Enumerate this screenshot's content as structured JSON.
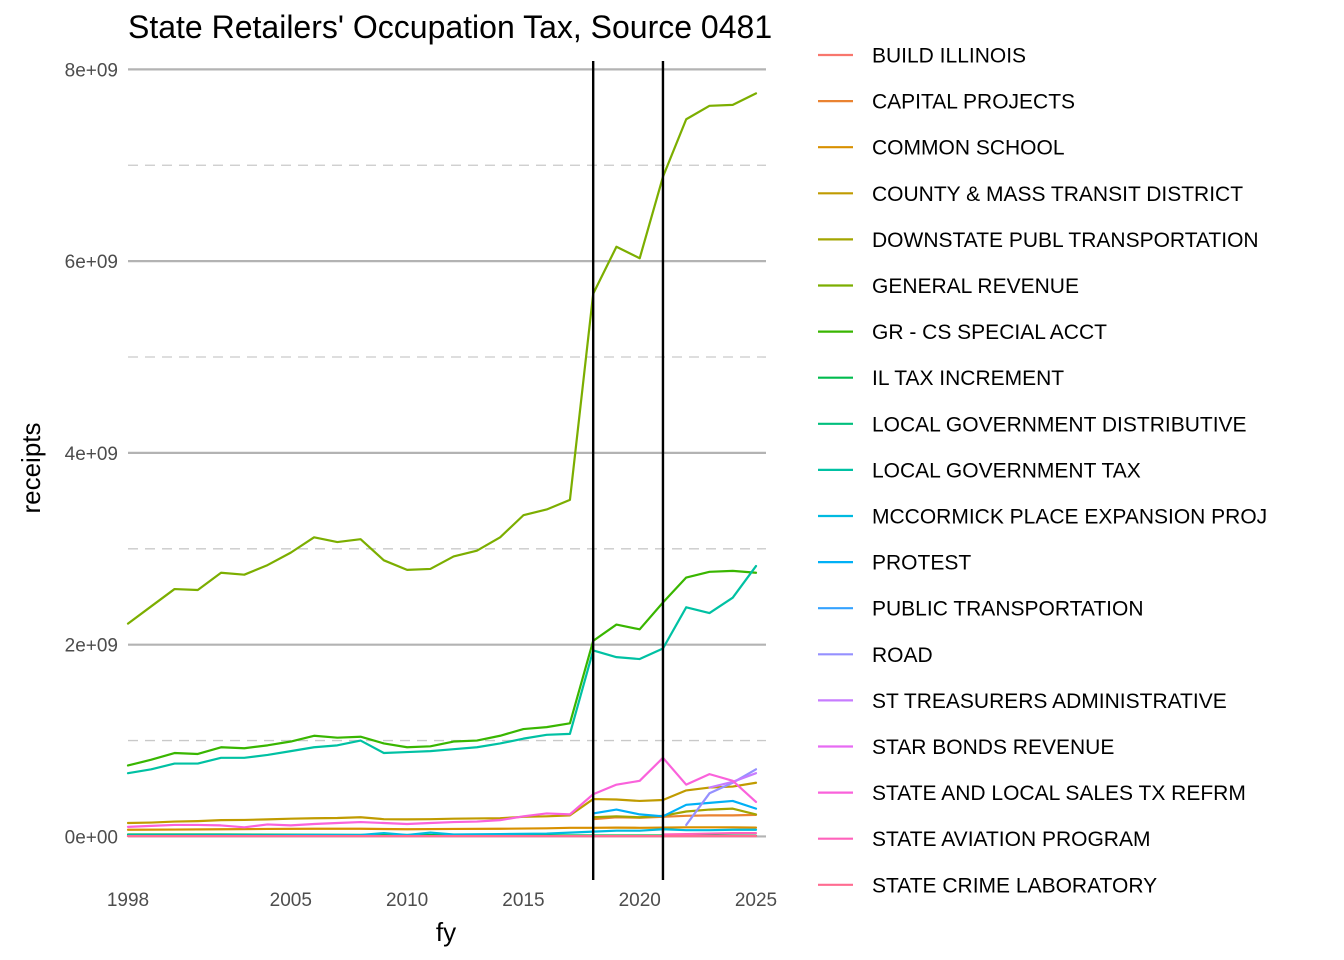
{
  "chart_data": {
    "type": "line",
    "title": "State Retailers' Occupation Tax, Source 0481",
    "xlabel": "fy",
    "ylabel": "receipts",
    "xlim": [
      1998,
      2025
    ],
    "ylim": [
      -350000000,
      8150000000
    ],
    "x_ticks": [
      1998,
      2005,
      2010,
      2015,
      2020,
      2025
    ],
    "x_tick_labels": [
      "1998",
      "2005",
      "2010",
      "2015",
      "2020",
      "2025"
    ],
    "y_ticks": [
      0,
      2000000000,
      4000000000,
      6000000000,
      8000000000
    ],
    "y_tick_labels": [
      "0e+00",
      "2e+09",
      "4e+09",
      "6e+09",
      "8e+09"
    ],
    "y_minor_ticks": [
      1000000000,
      3000000000,
      5000000000,
      7000000000
    ],
    "vlines": [
      2018,
      2021
    ],
    "grid": true,
    "legend_position": "right",
    "series": [
      {
        "name": "BUILD ILLINOIS",
        "color": "#F8766D",
        "x": [],
        "y": []
      },
      {
        "name": "CAPITAL PROJECTS",
        "color": "#EA8331",
        "x": [
          2018,
          2019,
          2020,
          2021,
          2022,
          2023,
          2024,
          2025
        ],
        "y": [
          180000000,
          200000000,
          195000000,
          205000000,
          215000000,
          220000000,
          220000000,
          225000000
        ]
      },
      {
        "name": "COMMON SCHOOL",
        "color": "#D89000",
        "x": [
          1998,
          2000,
          2002,
          2004,
          2006,
          2008,
          2010,
          2012,
          2014,
          2016,
          2017,
          2018,
          2019,
          2020,
          2021,
          2022,
          2023,
          2024,
          2025
        ],
        "y": [
          70000000,
          72000000,
          75000000,
          78000000,
          80000000,
          80000000,
          75000000,
          78000000,
          80000000,
          85000000,
          90000000,
          90000000,
          92000000,
          90000000,
          92000000,
          95000000,
          95000000,
          95000000,
          92000000
        ]
      },
      {
        "name": "COUNTY & MASS TRANSIT DISTRICT",
        "color": "#C09B00",
        "x": [
          1998,
          1999,
          2000,
          2001,
          2002,
          2003,
          2004,
          2005,
          2006,
          2007,
          2008,
          2009,
          2010,
          2011,
          2012,
          2013,
          2014,
          2015,
          2016,
          2017,
          2018,
          2019,
          2020,
          2021,
          2022,
          2023,
          2024,
          2025
        ],
        "y": [
          140000000,
          145000000,
          155000000,
          160000000,
          170000000,
          172000000,
          178000000,
          185000000,
          190000000,
          192000000,
          200000000,
          180000000,
          178000000,
          180000000,
          185000000,
          188000000,
          190000000,
          205000000,
          210000000,
          220000000,
          390000000,
          385000000,
          370000000,
          380000000,
          480000000,
          510000000,
          520000000,
          560000000
        ]
      },
      {
        "name": "DOWNSTATE PUBL TRANSPORTATION",
        "color": "#A3A500",
        "x": [
          2018,
          2019,
          2020,
          2021,
          2022,
          2023,
          2024,
          2025
        ],
        "y": [
          200000000,
          210000000,
          200000000,
          215000000,
          260000000,
          280000000,
          290000000,
          230000000
        ]
      },
      {
        "name": "GENERAL REVENUE",
        "color": "#7CAE00",
        "x": [
          1998,
          1999,
          2000,
          2001,
          2002,
          2003,
          2004,
          2005,
          2006,
          2007,
          2008,
          2009,
          2010,
          2011,
          2012,
          2013,
          2014,
          2015,
          2016,
          2017,
          2018,
          2019,
          2020,
          2021,
          2022,
          2023,
          2024,
          2025
        ],
        "y": [
          2220000000,
          2400000000,
          2580000000,
          2570000000,
          2750000000,
          2730000000,
          2830000000,
          2960000000,
          3120000000,
          3070000000,
          3100000000,
          2880000000,
          2780000000,
          2790000000,
          2920000000,
          2980000000,
          3120000000,
          3350000000,
          3410000000,
          3510000000,
          5660000000,
          6150000000,
          6030000000,
          6880000000,
          7480000000,
          7620000000,
          7630000000,
          7750000000
        ]
      },
      {
        "name": "GR - CS SPECIAL ACCT",
        "color": "#39B600",
        "x": [
          1998,
          1999,
          2000,
          2001,
          2002,
          2003,
          2004,
          2005,
          2006,
          2007,
          2008,
          2009,
          2010,
          2011,
          2012,
          2013,
          2014,
          2015,
          2016,
          2017,
          2018,
          2019,
          2020,
          2021,
          2022,
          2023,
          2024,
          2025
        ],
        "y": [
          740000000,
          800000000,
          870000000,
          860000000,
          930000000,
          920000000,
          950000000,
          990000000,
          1050000000,
          1030000000,
          1040000000,
          970000000,
          930000000,
          940000000,
          990000000,
          1000000000,
          1050000000,
          1120000000,
          1140000000,
          1180000000,
          2040000000,
          2210000000,
          2160000000,
          2440000000,
          2700000000,
          2760000000,
          2770000000,
          2750000000
        ]
      },
      {
        "name": "IL TAX INCREMENT",
        "color": "#00BB4E",
        "x": [
          1998,
          2002,
          2006,
          2010,
          2014,
          2018,
          2021,
          2025
        ],
        "y": [
          20000000,
          20000000,
          18000000,
          15000000,
          12000000,
          10000000,
          10000000,
          8000000
        ]
      },
      {
        "name": "LOCAL GOVERNMENT DISTRIBUTIVE",
        "color": "#00BF7D",
        "x": [],
        "y": []
      },
      {
        "name": "LOCAL GOVERNMENT TAX",
        "color": "#00C1A3",
        "x": [
          1998,
          1999,
          2000,
          2001,
          2002,
          2003,
          2004,
          2005,
          2006,
          2007,
          2008,
          2009,
          2010,
          2011,
          2012,
          2013,
          2014,
          2015,
          2016,
          2017,
          2018,
          2019,
          2020,
          2021,
          2022,
          2023,
          2024,
          2025
        ],
        "y": [
          660000000,
          700000000,
          760000000,
          760000000,
          820000000,
          820000000,
          850000000,
          890000000,
          930000000,
          950000000,
          1000000000,
          870000000,
          880000000,
          890000000,
          910000000,
          930000000,
          970000000,
          1020000000,
          1060000000,
          1070000000,
          1940000000,
          1870000000,
          1850000000,
          1960000000,
          2390000000,
          2330000000,
          2490000000,
          2820000000
        ]
      },
      {
        "name": "MCCORMICK PLACE EXPANSION PROJ",
        "color": "#00BAE0",
        "x": [
          1998,
          2000,
          2002,
          2004,
          2006,
          2008,
          2009,
          2010,
          2011,
          2012,
          2014,
          2016,
          2017,
          2018,
          2019,
          2020,
          2021,
          2022,
          2023,
          2024,
          2025
        ],
        "y": [
          10000000,
          10000000,
          12000000,
          12000000,
          15000000,
          15000000,
          35000000,
          15000000,
          40000000,
          20000000,
          25000000,
          30000000,
          40000000,
          50000000,
          60000000,
          60000000,
          75000000,
          65000000,
          65000000,
          70000000,
          70000000
        ]
      },
      {
        "name": "PROTEST",
        "color": "#00B0F6",
        "x": [
          2018,
          2019,
          2020,
          2021,
          2022,
          2023,
          2024,
          2025
        ],
        "y": [
          240000000,
          280000000,
          230000000,
          210000000,
          330000000,
          350000000,
          370000000,
          290000000
        ]
      },
      {
        "name": "PUBLIC TRANSPORTATION",
        "color": "#35A2FF",
        "x": [],
        "y": []
      },
      {
        "name": "ROAD",
        "color": "#9590FF",
        "x": [
          2022,
          2023,
          2024,
          2025
        ],
        "y": [
          120000000,
          450000000,
          560000000,
          700000000
        ]
      },
      {
        "name": "ST TREASURERS ADMINISTRATIVE",
        "color": "#C77CFF",
        "x": [
          2023,
          2024,
          2025
        ],
        "y": [
          510000000,
          570000000,
          660000000
        ]
      },
      {
        "name": "STAR BONDS REVENUE",
        "color": "#E76BF3",
        "x": [],
        "y": []
      },
      {
        "name": "STATE AND LOCAL SALES TX REFRM",
        "color": "#FA62DB",
        "x": [
          1998,
          1999,
          2000,
          2001,
          2002,
          2003,
          2004,
          2005,
          2006,
          2007,
          2008,
          2009,
          2010,
          2011,
          2012,
          2013,
          2014,
          2015,
          2016,
          2017,
          2018,
          2019,
          2020,
          2021,
          2022,
          2023,
          2024,
          2025
        ],
        "y": [
          100000000,
          110000000,
          120000000,
          120000000,
          115000000,
          95000000,
          125000000,
          115000000,
          130000000,
          140000000,
          150000000,
          140000000,
          130000000,
          140000000,
          150000000,
          155000000,
          170000000,
          210000000,
          240000000,
          230000000,
          440000000,
          540000000,
          580000000,
          820000000,
          540000000,
          650000000,
          580000000,
          360000000
        ]
      },
      {
        "name": "STATE AVIATION PROGRAM",
        "color": "#FF62BC",
        "x": [
          2021,
          2022,
          2023,
          2024,
          2025
        ],
        "y": [
          20000000,
          25000000,
          30000000,
          35000000,
          35000000
        ]
      },
      {
        "name": "STATE CRIME LABORATORY",
        "color": "#FF6C91",
        "x": [
          1998,
          2002,
          2006,
          2010,
          2014,
          2018,
          2021,
          2025
        ],
        "y": [
          3000000,
          3000000,
          3000000,
          3000000,
          3000000,
          3000000,
          3000000,
          3000000
        ]
      }
    ]
  }
}
